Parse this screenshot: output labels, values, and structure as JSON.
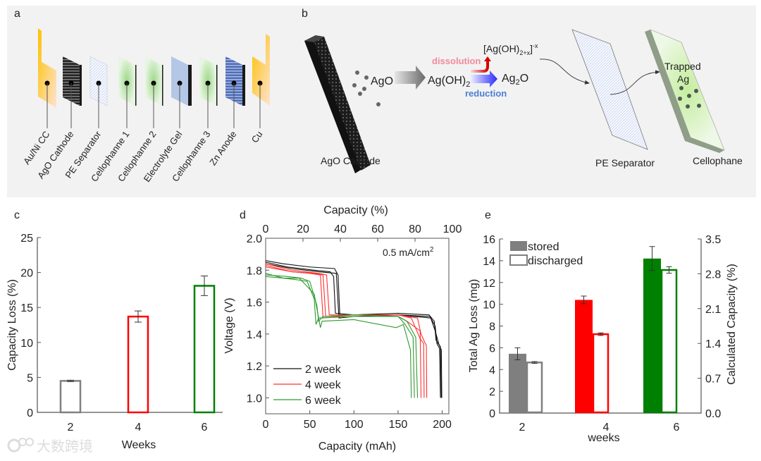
{
  "panel_a": {
    "label": "a",
    "layers": [
      {
        "name": "Au/Ni CC",
        "kind": "cc",
        "color": "#ffc000"
      },
      {
        "name": "AgO Cathode",
        "kind": "dark",
        "color": "#333333"
      },
      {
        "name": "PE Separator",
        "kind": "mesh",
        "color": "#eef2fb"
      },
      {
        "name": "Cellophanne 1",
        "kind": "cello",
        "color": "#a9d99a"
      },
      {
        "name": "Cellophanne 2",
        "kind": "cello",
        "color": "#a9d99a"
      },
      {
        "name": "Electrolyte Gel",
        "kind": "gel",
        "color": "#b4c7e7"
      },
      {
        "name": "Cellophanne 3",
        "kind": "cello",
        "color": "#a9d99a"
      },
      {
        "name": "Zn Anode",
        "kind": "zn",
        "color": "#6f8cc9"
      },
      {
        "name": "Cu",
        "kind": "cu",
        "color": "#ffc000"
      }
    ]
  },
  "panel_b": {
    "label": "b",
    "cathode_label": "AgO Cathode",
    "ago": "AgO",
    "agoh2": "Ag(OH)",
    "agoh2_sub": "2",
    "dissolution": "dissolution",
    "reduction": "reduction",
    "complex": "[Ag(OH)",
    "complex_sub": "2+x",
    "complex_close": "]",
    "complex_sup": "-x",
    "ag2o_a": "Ag",
    "ag2o_sub": "2",
    "ag2o_b": "O",
    "trapped_1": "Trapped",
    "trapped_2": "Ag",
    "separator_label": "PE Separator",
    "cellophane_label": "Cellophane",
    "dissolution_color": "#f4899b",
    "reduction_color": "#4a7fd4"
  },
  "watermark": "大数跨境",
  "chart_data": [
    {
      "id": "c",
      "panel_label": "c",
      "type": "bar",
      "categories": [
        "2",
        "4",
        "6"
      ],
      "values": [
        4.5,
        13.7,
        18.1
      ],
      "errors": [
        0.1,
        0.8,
        1.4
      ],
      "colors": [
        "#808080",
        "#ff0000",
        "#008000"
      ],
      "fill": "hollow",
      "xlabel": "Weeks",
      "ylabel": "Capacity Loss (%)",
      "ylim": [
        0,
        25
      ],
      "yticks": [
        "0",
        "5",
        "10",
        "15",
        "20",
        "25"
      ]
    },
    {
      "id": "d",
      "panel_label": "d",
      "type": "line",
      "xlabel": "Capacity (mAh)",
      "ylabel": "Voltage (V)",
      "x2label": "Capacity (%)",
      "xlim": [
        0,
        207.5
      ],
      "ylim": [
        0.9,
        2.0
      ],
      "xticks": [
        "0",
        "50",
        "100",
        "150",
        "200"
      ],
      "x2ticks": [
        "0",
        "20",
        "40",
        "60",
        "80",
        "100"
      ],
      "yticks": [
        "1.0",
        "1.2",
        "1.4",
        "1.6",
        "1.8",
        "2.0"
      ],
      "annotation": "0.5 mA/cm",
      "annotation_sup": "2",
      "legend_position": "bottom-left",
      "series": [
        {
          "name": "2 week",
          "color": "#111111",
          "curves": [
            [
              [
                0,
                1.86
              ],
              [
                20,
                1.84
              ],
              [
                50,
                1.82
              ],
              [
                78,
                1.81
              ],
              [
                82,
                1.77
              ],
              [
                84,
                1.52
              ],
              [
                100,
                1.52
              ],
              [
                150,
                1.53
              ],
              [
                185,
                1.52
              ],
              [
                191,
                1.48
              ],
              [
                193,
                1.36
              ],
              [
                198,
                1.32
              ],
              [
                199,
                1.0
              ]
            ],
            [
              [
                0,
                1.85
              ],
              [
                25,
                1.82
              ],
              [
                55,
                1.8
              ],
              [
                73,
                1.79
              ],
              [
                77,
                1.76
              ],
              [
                79,
                1.53
              ],
              [
                100,
                1.52
              ],
              [
                150,
                1.52
              ],
              [
                186,
                1.51
              ],
              [
                192,
                1.45
              ],
              [
                194,
                1.34
              ],
              [
                197,
                1.31
              ],
              [
                198,
                1.0
              ]
            ],
            [
              [
                0,
                1.84
              ],
              [
                30,
                1.81
              ],
              [
                60,
                1.79
              ],
              [
                80,
                1.78
              ],
              [
                83,
                1.5
              ],
              [
                100,
                1.51
              ],
              [
                150,
                1.52
              ],
              [
                187,
                1.5
              ],
              [
                192,
                1.42
              ],
              [
                196,
                1.34
              ],
              [
                199,
                1.3
              ],
              [
                199.5,
                1.0
              ]
            ]
          ]
        },
        {
          "name": "4 week",
          "color": "#ff3030",
          "curves": [
            [
              [
                0,
                1.84
              ],
              [
                30,
                1.8
              ],
              [
                60,
                1.78
              ],
              [
                69,
                1.77
              ],
              [
                72,
                1.52
              ],
              [
                100,
                1.52
              ],
              [
                150,
                1.52
              ],
              [
                172,
                1.5
              ],
              [
                176,
                1.4
              ],
              [
                180,
                1.35
              ],
              [
                182,
                1.33
              ],
              [
                182.5,
                1.0
              ]
            ],
            [
              [
                0,
                1.83
              ],
              [
                30,
                1.79
              ],
              [
                55,
                1.78
              ],
              [
                65,
                1.77
              ],
              [
                68,
                1.51
              ],
              [
                100,
                1.52
              ],
              [
                150,
                1.52
              ],
              [
                165,
                1.5
              ],
              [
                175,
                1.37
              ],
              [
                179,
                1.34
              ],
              [
                179.5,
                1.0
              ]
            ],
            [
              [
                0,
                1.82
              ],
              [
                30,
                1.79
              ],
              [
                50,
                1.78
              ],
              [
                62,
                1.77
              ],
              [
                65,
                1.5
              ],
              [
                100,
                1.52
              ],
              [
                150,
                1.51
              ],
              [
                160,
                1.48
              ],
              [
                170,
                1.44
              ],
              [
                175,
                1.42
              ],
              [
                176,
                1.0
              ]
            ]
          ]
        },
        {
          "name": "6 week",
          "color": "#2f9a2f",
          "curves": [
            [
              [
                0,
                1.78
              ],
              [
                20,
                1.75
              ],
              [
                35,
                1.74
              ],
              [
                47,
                1.73
              ],
              [
                55,
                1.62
              ],
              [
                57,
                1.46
              ],
              [
                60,
                1.5
              ],
              [
                100,
                1.51
              ],
              [
                150,
                1.51
              ],
              [
                160,
                1.48
              ],
              [
                170,
                1.38
              ],
              [
                172,
                1.0
              ]
            ],
            [
              [
                0,
                1.77
              ],
              [
                25,
                1.76
              ],
              [
                40,
                1.75
              ],
              [
                50,
                1.73
              ],
              [
                58,
                1.58
              ],
              [
                60,
                1.48
              ],
              [
                65,
                1.51
              ],
              [
                100,
                1.52
              ],
              [
                150,
                1.51
              ],
              [
                158,
                1.46
              ],
              [
                167,
                1.38
              ],
              [
                168.5,
                1.0
              ]
            ],
            [
              [
                0,
                1.76
              ],
              [
                20,
                1.75
              ],
              [
                38,
                1.75
              ],
              [
                45,
                1.71
              ],
              [
                55,
                1.65
              ],
              [
                62,
                1.44
              ],
              [
                64,
                1.48
              ],
              [
                100,
                1.49
              ],
              [
                148,
                1.44
              ],
              [
                156,
                1.46
              ],
              [
                164,
                1.3
              ],
              [
                165,
                1.0
              ]
            ]
          ]
        }
      ]
    },
    {
      "id": "e",
      "panel_label": "e",
      "type": "bar",
      "categories": [
        "2",
        "4",
        "6"
      ],
      "series": [
        {
          "name": "stored",
          "fill": "solid",
          "values": [
            5.45,
            10.4,
            14.2
          ],
          "errors": [
            0.55,
            0.35,
            1.1
          ]
        },
        {
          "name": "discharged",
          "fill": "hollow",
          "values": [
            4.65,
            7.25,
            13.15
          ],
          "errors": [
            0.08,
            0.12,
            0.3
          ]
        }
      ],
      "colors": [
        "#7f7f7f",
        "#ff0000",
        "#008000"
      ],
      "xlabel": "weeks",
      "ylabel": "Total Ag Loss (mg)",
      "y2label": "Calculated Capacity (%)",
      "ylim": [
        0,
        16
      ],
      "yticks": [
        "0",
        "2",
        "4",
        "6",
        "8",
        "10",
        "12",
        "14",
        "16"
      ],
      "y2lim": [
        0,
        3.5
      ],
      "y2ticks": [
        "0.0",
        "0.7",
        "1.4",
        "2.1",
        "2.8",
        "3.5"
      ],
      "legend_position": "top-left"
    }
  ]
}
